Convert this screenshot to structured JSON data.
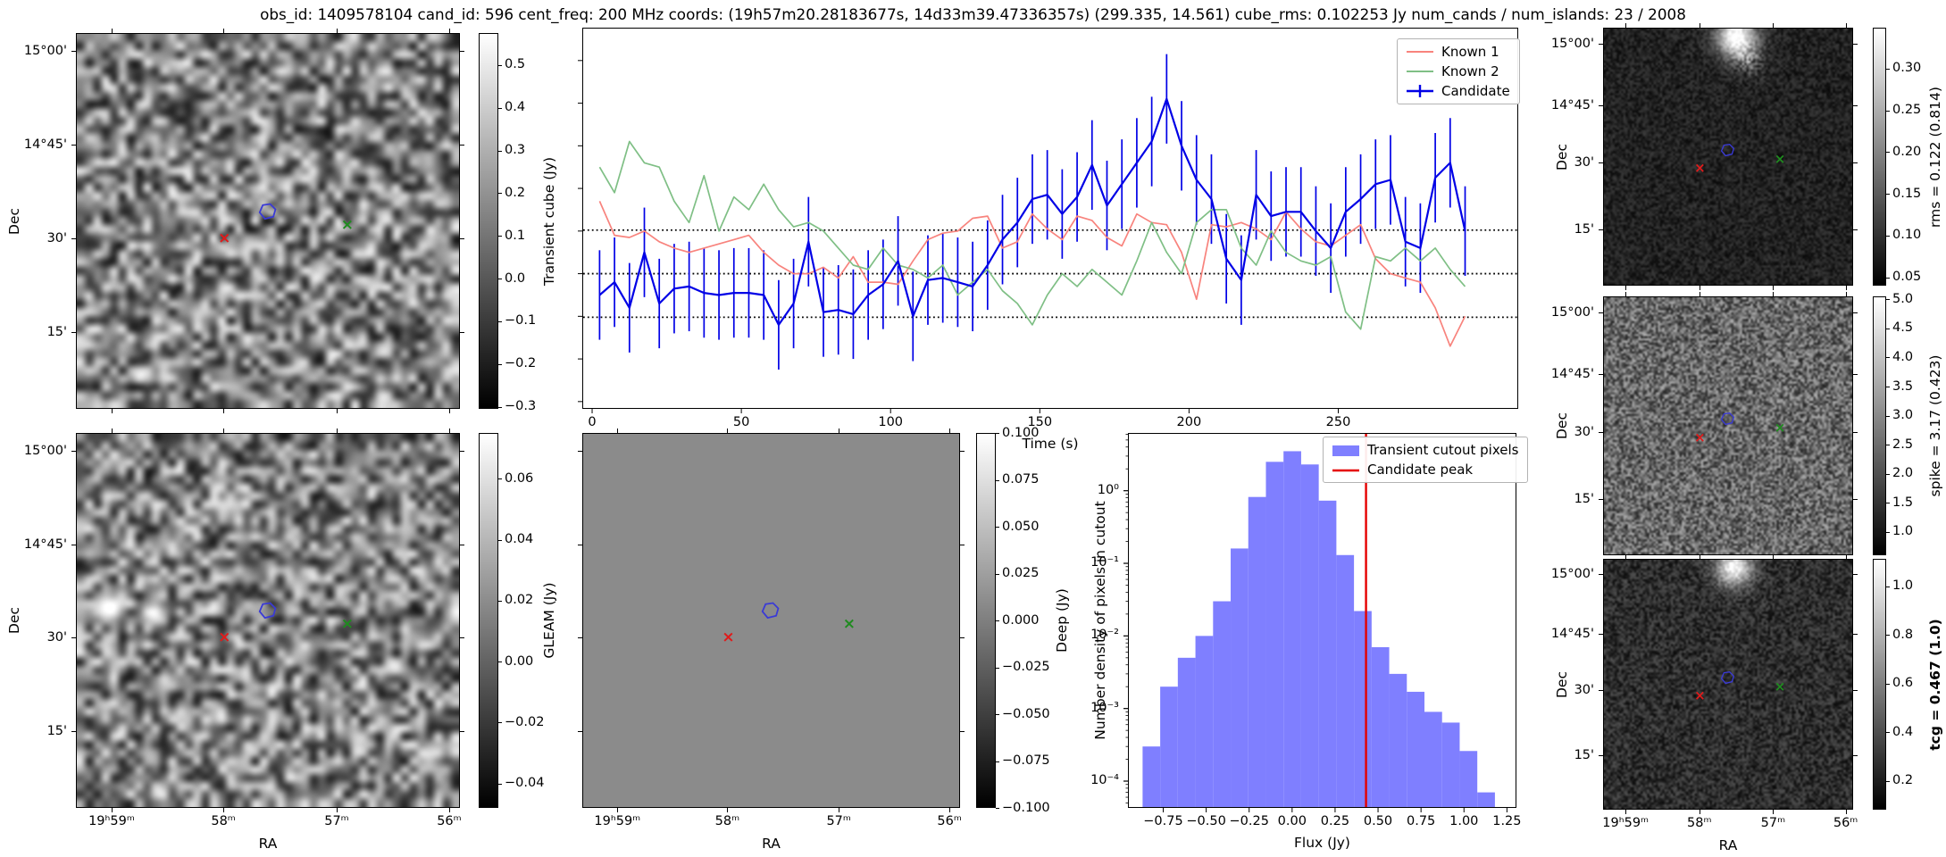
{
  "title": "obs_id: 1409578104 cand_id: 596 cent_freq: 200 MHz coords: (19h57m20.28183677s, 14d33m39.47336357s) (299.335, 14.561) cube_rms: 0.102253 Jy num_cands / num_islands: 23 / 2008",
  "axes": {
    "dec_label": "Dec",
    "ra_label": "RA",
    "dec_ticks": [
      "15°00'",
      "14°45'",
      "30'",
      "15'"
    ],
    "ra_ticks": [
      "19ʰ59ᵐ",
      "58ᵐ",
      "57ᵐ",
      "56ᵐ"
    ]
  },
  "markers": {
    "known1_x": {
      "color": "#e01b1b",
      "symbol": "×",
      "fx": 0.385,
      "fy": 0.552
    },
    "known2_x": {
      "color": "#1f8b1f",
      "symbol": "×",
      "fx": 0.705,
      "fy": 0.516
    },
    "candidate_contour": {
      "color": "#3a3ad6",
      "fx": 0.497,
      "fy": 0.477
    }
  },
  "colorbars": {
    "transient_cube": {
      "label": "Transient cube (Jy)",
      "ticks": [
        0.5,
        0.4,
        0.3,
        0.2,
        0.1,
        0.0,
        -0.1,
        -0.2,
        -0.3
      ],
      "decimals": 1,
      "vmin": -0.305,
      "vmax": 0.575,
      "bold": false
    },
    "gleam": {
      "label": "GLEAM (Jy)",
      "ticks": [
        0.06,
        0.04,
        0.02,
        0.0,
        -0.02,
        -0.04
      ],
      "decimals": 2,
      "vmin": -0.048,
      "vmax": 0.075,
      "bold": false
    },
    "deep": {
      "label": "Deep (Jy)",
      "ticks": [
        0.1,
        0.075,
        0.05,
        0.025,
        0.0,
        -0.025,
        -0.05,
        -0.075,
        -0.1
      ],
      "decimals": 3,
      "vmin": -0.1,
      "vmax": 0.1,
      "bold": false
    },
    "rms": {
      "label": "rms = 0.122 (0.814)",
      "ticks": [
        0.3,
        0.25,
        0.2,
        0.15,
        0.1,
        0.05
      ],
      "decimals": 2,
      "vmin": 0.04,
      "vmax": 0.349,
      "bold": false
    },
    "spike": {
      "label": "spike = 3.17 (0.423)",
      "ticks": [
        5.0,
        4.5,
        4.0,
        3.5,
        3.0,
        2.5,
        2.0,
        1.5,
        1.0
      ],
      "decimals": 1,
      "vmin": 0.6,
      "vmax": 5.05,
      "bold": false
    },
    "tcg": {
      "label": "tcg = 0.467 (1.0)",
      "ticks": [
        1.0,
        0.8,
        0.6,
        0.4,
        0.2
      ],
      "decimals": 1,
      "vmin": 0.082,
      "vmax": 1.113,
      "bold": true
    }
  },
  "chart_data": [
    {
      "id": "lightcurve",
      "type": "line",
      "title": "",
      "xlabel": "Time (s)",
      "ylabel": "",
      "xlim": [
        -3,
        310
      ],
      "ylim": [
        -0.315,
        0.575
      ],
      "x_ticks": [
        0,
        50,
        100,
        150,
        200,
        250
      ],
      "y_tick_marks": [
        0.5,
        0.4,
        0.3,
        0.2,
        0.1,
        0.0,
        -0.1,
        -0.2,
        -0.3
      ],
      "dotted_hlines": [
        0.102253,
        0.0,
        -0.102253
      ],
      "grid": false,
      "legend_position": "upper right",
      "x_start": 2.5,
      "x_step": 5,
      "series": [
        {
          "name": "Known 1",
          "color": "#f8837d",
          "width": 1.7,
          "values": [
            0.17,
            0.09,
            0.085,
            0.1,
            0.075,
            0.06,
            0.05,
            0.06,
            0.07,
            0.08,
            0.09,
            0.05,
            0.02,
            0.0,
            0.0,
            0.015,
            -0.01,
            0.04,
            -0.02,
            -0.02,
            -0.025,
            0.03,
            0.08,
            0.095,
            0.1,
            0.13,
            0.135,
            0.06,
            0.075,
            0.14,
            0.105,
            0.08,
            0.135,
            0.125,
            0.085,
            0.065,
            0.14,
            0.12,
            0.115,
            0.05,
            -0.06,
            0.115,
            0.11,
            0.12,
            0.105,
            0.08,
            0.145,
            0.105,
            0.075,
            0.065,
            0.09,
            0.115,
            0.035,
            0.0,
            -0.01,
            -0.02,
            -0.08,
            -0.17,
            -0.1
          ]
        },
        {
          "name": "Known 2",
          "color": "#7fbf85",
          "width": 1.7,
          "values": [
            0.25,
            0.19,
            0.31,
            0.26,
            0.25,
            0.17,
            0.12,
            0.23,
            0.1,
            0.18,
            0.15,
            0.21,
            0.15,
            0.11,
            0.12,
            0.1,
            0.06,
            0.02,
            0.01,
            0.06,
            0.02,
            0.01,
            -0.01,
            0.02,
            -0.05,
            -0.02,
            0.01,
            -0.04,
            -0.07,
            -0.12,
            -0.05,
            0.0,
            -0.03,
            0.01,
            -0.02,
            -0.05,
            0.03,
            0.12,
            0.05,
            0.0,
            0.12,
            0.15,
            0.15,
            0.06,
            0.02,
            0.1,
            0.05,
            0.03,
            0.02,
            0.04,
            -0.09,
            -0.13,
            0.04,
            0.03,
            0.06,
            0.03,
            0.06,
            0.01,
            -0.03
          ]
        },
        {
          "name": "Candidate",
          "color": "#0000e6",
          "width": 2.2,
          "yerr": 0.105,
          "values": [
            -0.05,
            -0.02,
            -0.08,
            0.05,
            -0.07,
            -0.035,
            -0.03,
            -0.045,
            -0.05,
            -0.045,
            -0.045,
            -0.05,
            -0.12,
            -0.07,
            0.075,
            -0.09,
            -0.085,
            -0.095,
            -0.05,
            -0.025,
            0.03,
            -0.1,
            -0.015,
            -0.01,
            -0.02,
            -0.03,
            0.02,
            0.08,
            0.12,
            0.175,
            0.185,
            0.14,
            0.18,
            0.255,
            0.16,
            0.21,
            0.26,
            0.31,
            0.41,
            0.3,
            0.22,
            0.175,
            0.035,
            -0.015,
            0.185,
            0.135,
            0.145,
            0.145,
            0.1,
            0.06,
            0.145,
            0.175,
            0.21,
            0.22,
            0.075,
            0.06,
            0.225,
            0.26,
            0.1
          ]
        }
      ]
    },
    {
      "id": "flux_histogram",
      "type": "bar",
      "title": "",
      "xlabel": "Flux (Jy)",
      "ylabel": "Number density of pixels in cutout",
      "xlim": [
        -0.95,
        1.3
      ],
      "ylim": [
        4.4e-05,
        6.07
      ],
      "yscale": "log",
      "x_tick_labels": [
        "−0.75",
        "−0.50",
        "−0.25",
        "0.00",
        "0.25",
        "0.50",
        "0.75",
        "1.00",
        "1.25"
      ],
      "x_tick_values": [
        -0.75,
        -0.5,
        -0.25,
        0.0,
        0.25,
        0.5,
        0.75,
        1.0,
        1.25
      ],
      "y_tick_labels": [
        "10⁰",
        "10⁻¹",
        "10⁻²",
        "10⁻³",
        "10⁻⁴"
      ],
      "y_tick_values": [
        1,
        0.1,
        0.01,
        0.001,
        0.0001
      ],
      "bin_start": -0.87,
      "bin_width": 0.1025,
      "values": [
        0.0003,
        0.002,
        0.005,
        0.01,
        0.03,
        0.16,
        0.82,
        2.5,
        3.5,
        2.3,
        0.73,
        0.13,
        0.022,
        0.007,
        0.003,
        0.0017,
        0.0009,
        0.00064,
        0.00026,
        7e-05
      ],
      "bar_color": "#7f7fff",
      "candidate_peak": 0.43,
      "peak_color": "#e50000",
      "legend": [
        {
          "label": "Transient cutout pixels",
          "color": "#7f7fff",
          "type": "patch"
        },
        {
          "label": "Candidate peak",
          "color": "#e50000",
          "type": "line"
        }
      ]
    }
  ]
}
